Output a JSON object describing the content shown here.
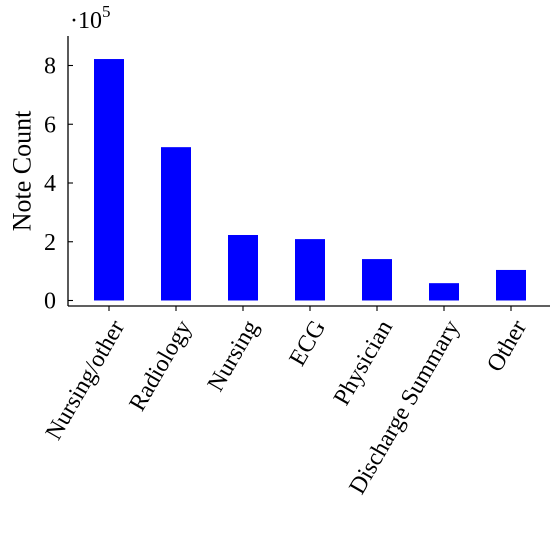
{
  "chart_data": {
    "type": "bar",
    "categories": [
      "Nursing/other",
      "Radiology",
      "Nursing",
      "ECG",
      "Physician",
      "Discharge Summary",
      "Other"
    ],
    "values": [
      822000,
      522000,
      223000,
      209000,
      141000,
      59000,
      104000
    ],
    "ylabel": "Note Count",
    "xlabel": "",
    "ylim": [
      0,
      900000
    ],
    "ytick_values": [
      0,
      200000,
      400000,
      600000,
      800000
    ],
    "ytick_labels": [
      "0",
      "2",
      "4",
      "6",
      "8"
    ],
    "yscale_label": "·10",
    "yscale_exponent": "5",
    "bar_color": "#0000ff",
    "grid": false
  }
}
